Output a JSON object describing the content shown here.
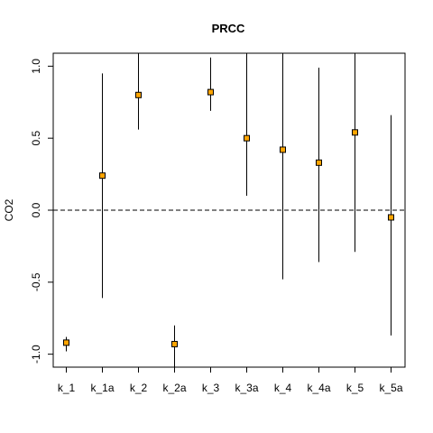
{
  "chart_data": {
    "type": "scatter",
    "title": "PRCC",
    "xlabel": "",
    "ylabel": "CO2",
    "categories": [
      "k_1",
      "k_1a",
      "k_2",
      "k_2a",
      "k_3",
      "k_3a",
      "k_4",
      "k_4a",
      "k_5",
      "k_5a"
    ],
    "values": [
      -0.92,
      0.24,
      0.8,
      -0.93,
      0.82,
      0.5,
      0.42,
      0.33,
      0.54,
      -0.05
    ],
    "lower": [
      -0.98,
      -0.61,
      0.56,
      -1.09,
      0.69,
      0.1,
      -0.48,
      -0.36,
      -0.29,
      -0.87
    ],
    "upper": [
      -0.88,
      0.95,
      1.09,
      -0.8,
      1.06,
      1.09,
      1.09,
      0.99,
      1.09,
      0.66
    ],
    "yticks": [
      "-1.0",
      "-0.5",
      "0.0",
      "0.5",
      "1.0"
    ],
    "ylim": [
      -1.09,
      1.09
    ],
    "reference_line": 0,
    "grid": false,
    "marker_color": "#FFA500"
  }
}
